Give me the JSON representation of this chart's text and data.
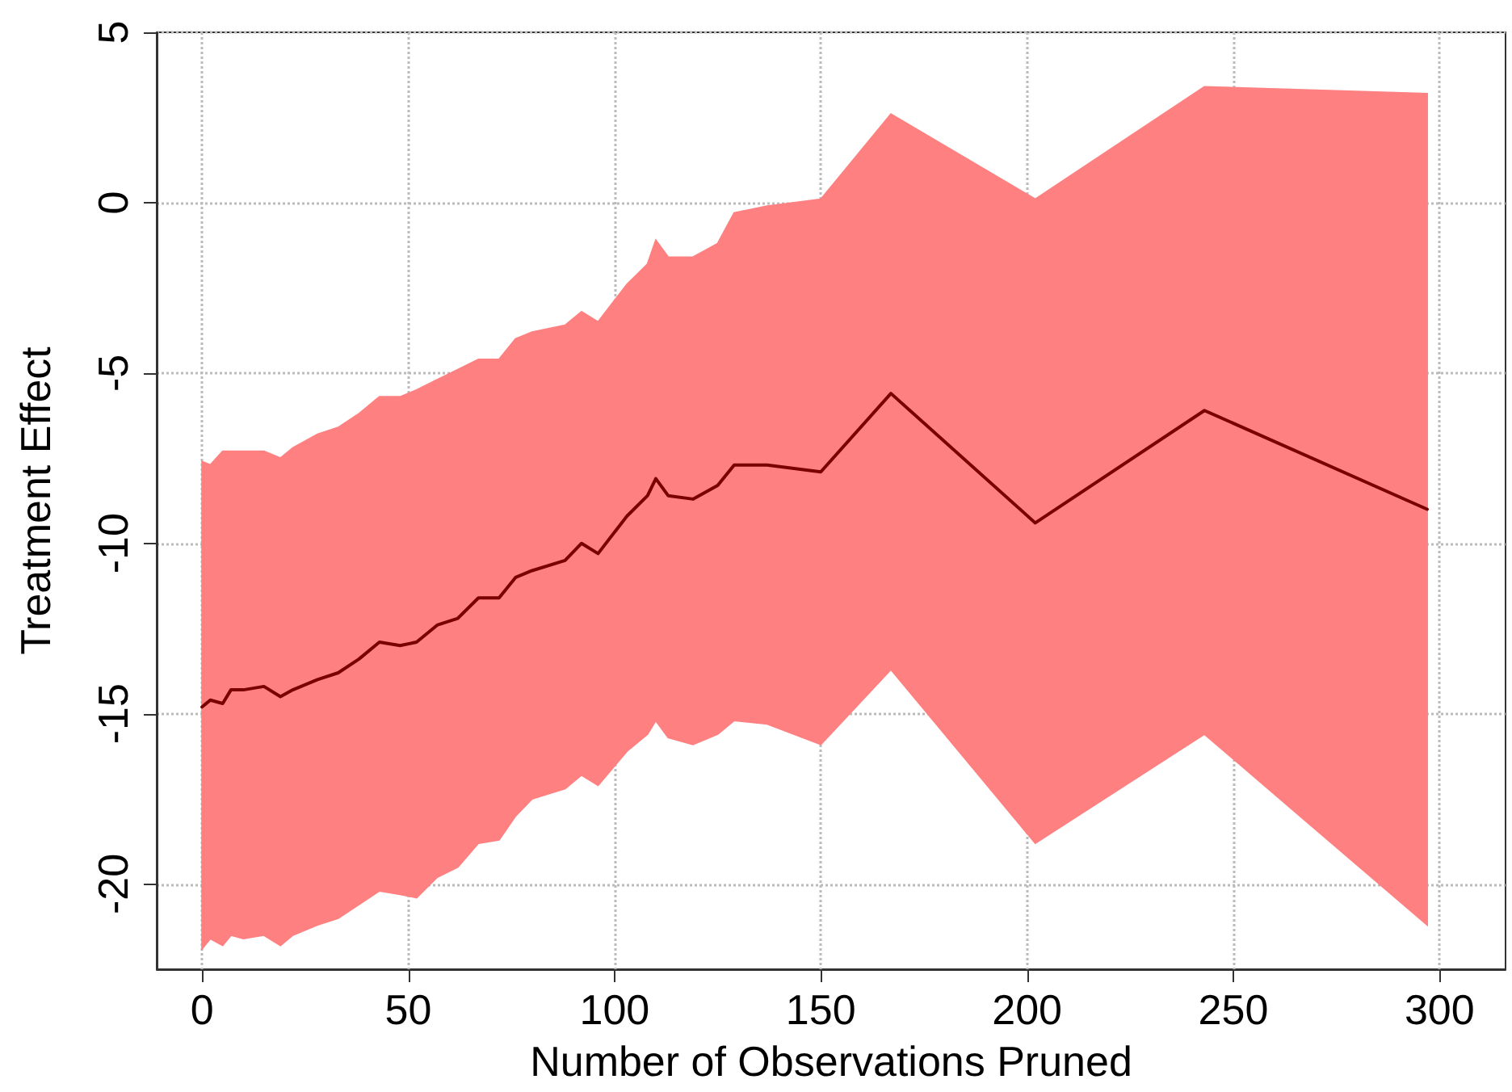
{
  "chart_data": {
    "type": "line",
    "xlabel": "Number of Observations Pruned",
    "ylabel": "Treatment Effect",
    "xlim": [
      -11,
      316
    ],
    "xticks": [
      0,
      50,
      100,
      150,
      200,
      250,
      300
    ],
    "ylim": [
      -22.5,
      5
    ],
    "yticks": [
      -20,
      -15,
      -10,
      -5,
      0,
      5
    ],
    "grid": true,
    "marker": "none",
    "line_style": "solid",
    "x": [
      0,
      2,
      5,
      7,
      10,
      15,
      19,
      22,
      28,
      33,
      38,
      43,
      48,
      52,
      57,
      62,
      67,
      72,
      76,
      80,
      88,
      92,
      96,
      103,
      108,
      110,
      113,
      119,
      125,
      129,
      137,
      150,
      167,
      202,
      243,
      297
    ],
    "series": [
      {
        "color": "#7a0000",
        "values": [
          -14.8,
          -14.6,
          -14.7,
          -14.3,
          -14.3,
          -14.2,
          -14.5,
          -14.3,
          -14.0,
          -13.8,
          -13.4,
          -12.9,
          -13.0,
          -12.9,
          -12.4,
          -12.2,
          -11.6,
          -11.6,
          -11.0,
          -10.8,
          -10.5,
          -10.0,
          -10.3,
          -9.2,
          -8.6,
          -8.1,
          -8.6,
          -8.7,
          -8.3,
          -7.7,
          -7.7,
          -7.9,
          -5.6,
          -9.4,
          -6.1,
          -9.0
        ],
        "upper": [
          -7.6,
          -7.7,
          -7.3,
          -7.3,
          -7.3,
          -7.3,
          -7.5,
          -7.2,
          -6.8,
          -6.6,
          -6.2,
          -5.7,
          -5.7,
          -5.5,
          -5.2,
          -4.9,
          -4.6,
          -4.6,
          -4.0,
          -3.8,
          -3.6,
          -3.2,
          -3.5,
          -2.4,
          -1.8,
          -1.1,
          -1.6,
          -1.6,
          -1.2,
          -0.3,
          -0.1,
          0.1,
          2.6,
          0.1,
          3.4,
          3.2
        ],
        "lower": [
          -21.9,
          -21.6,
          -21.8,
          -21.5,
          -21.6,
          -21.5,
          -21.8,
          -21.5,
          -21.2,
          -21.0,
          -20.6,
          -20.2,
          -20.3,
          -20.4,
          -19.8,
          -19.5,
          -18.8,
          -18.7,
          -18.0,
          -17.5,
          -17.2,
          -16.8,
          -17.1,
          -16.1,
          -15.6,
          -15.2,
          -15.7,
          -15.9,
          -15.6,
          -15.2,
          -15.3,
          -15.9,
          -13.7,
          -18.8,
          -15.6,
          -21.2
        ]
      }
    ]
  }
}
